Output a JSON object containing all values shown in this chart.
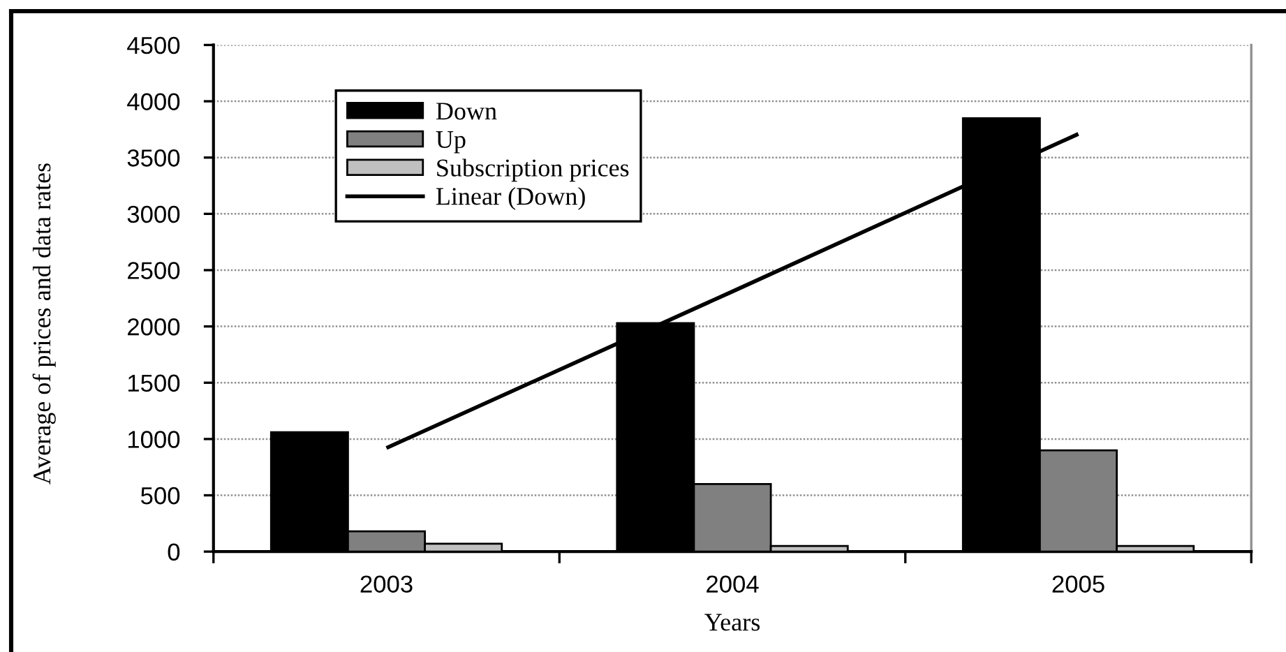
{
  "chart_data": {
    "type": "bar",
    "xlabel": "Years",
    "ylabel": "Average of prices and data rates",
    "categories": [
      "2003",
      "2004",
      "2005"
    ],
    "series": [
      {
        "name": "Down",
        "color": "#000000",
        "values": [
          1060,
          2030,
          3850
        ]
      },
      {
        "name": "Up",
        "color": "#808080",
        "values": [
          180,
          600,
          900
        ]
      },
      {
        "name": "Subscription prices",
        "color": "#c0c0c0",
        "values": [
          70,
          50,
          50
        ]
      },
      {
        "name": "Linear (Down)",
        "type": "line",
        "color": "#000000",
        "line_style": "solid",
        "values": [
          920,
          2310,
          3710
        ]
      }
    ],
    "ylim": [
      0,
      4500
    ],
    "yticks": [
      0,
      500,
      1000,
      1500,
      2000,
      2500,
      3000,
      3500,
      4000,
      4500
    ],
    "grid": "y",
    "legend": "top left"
  }
}
